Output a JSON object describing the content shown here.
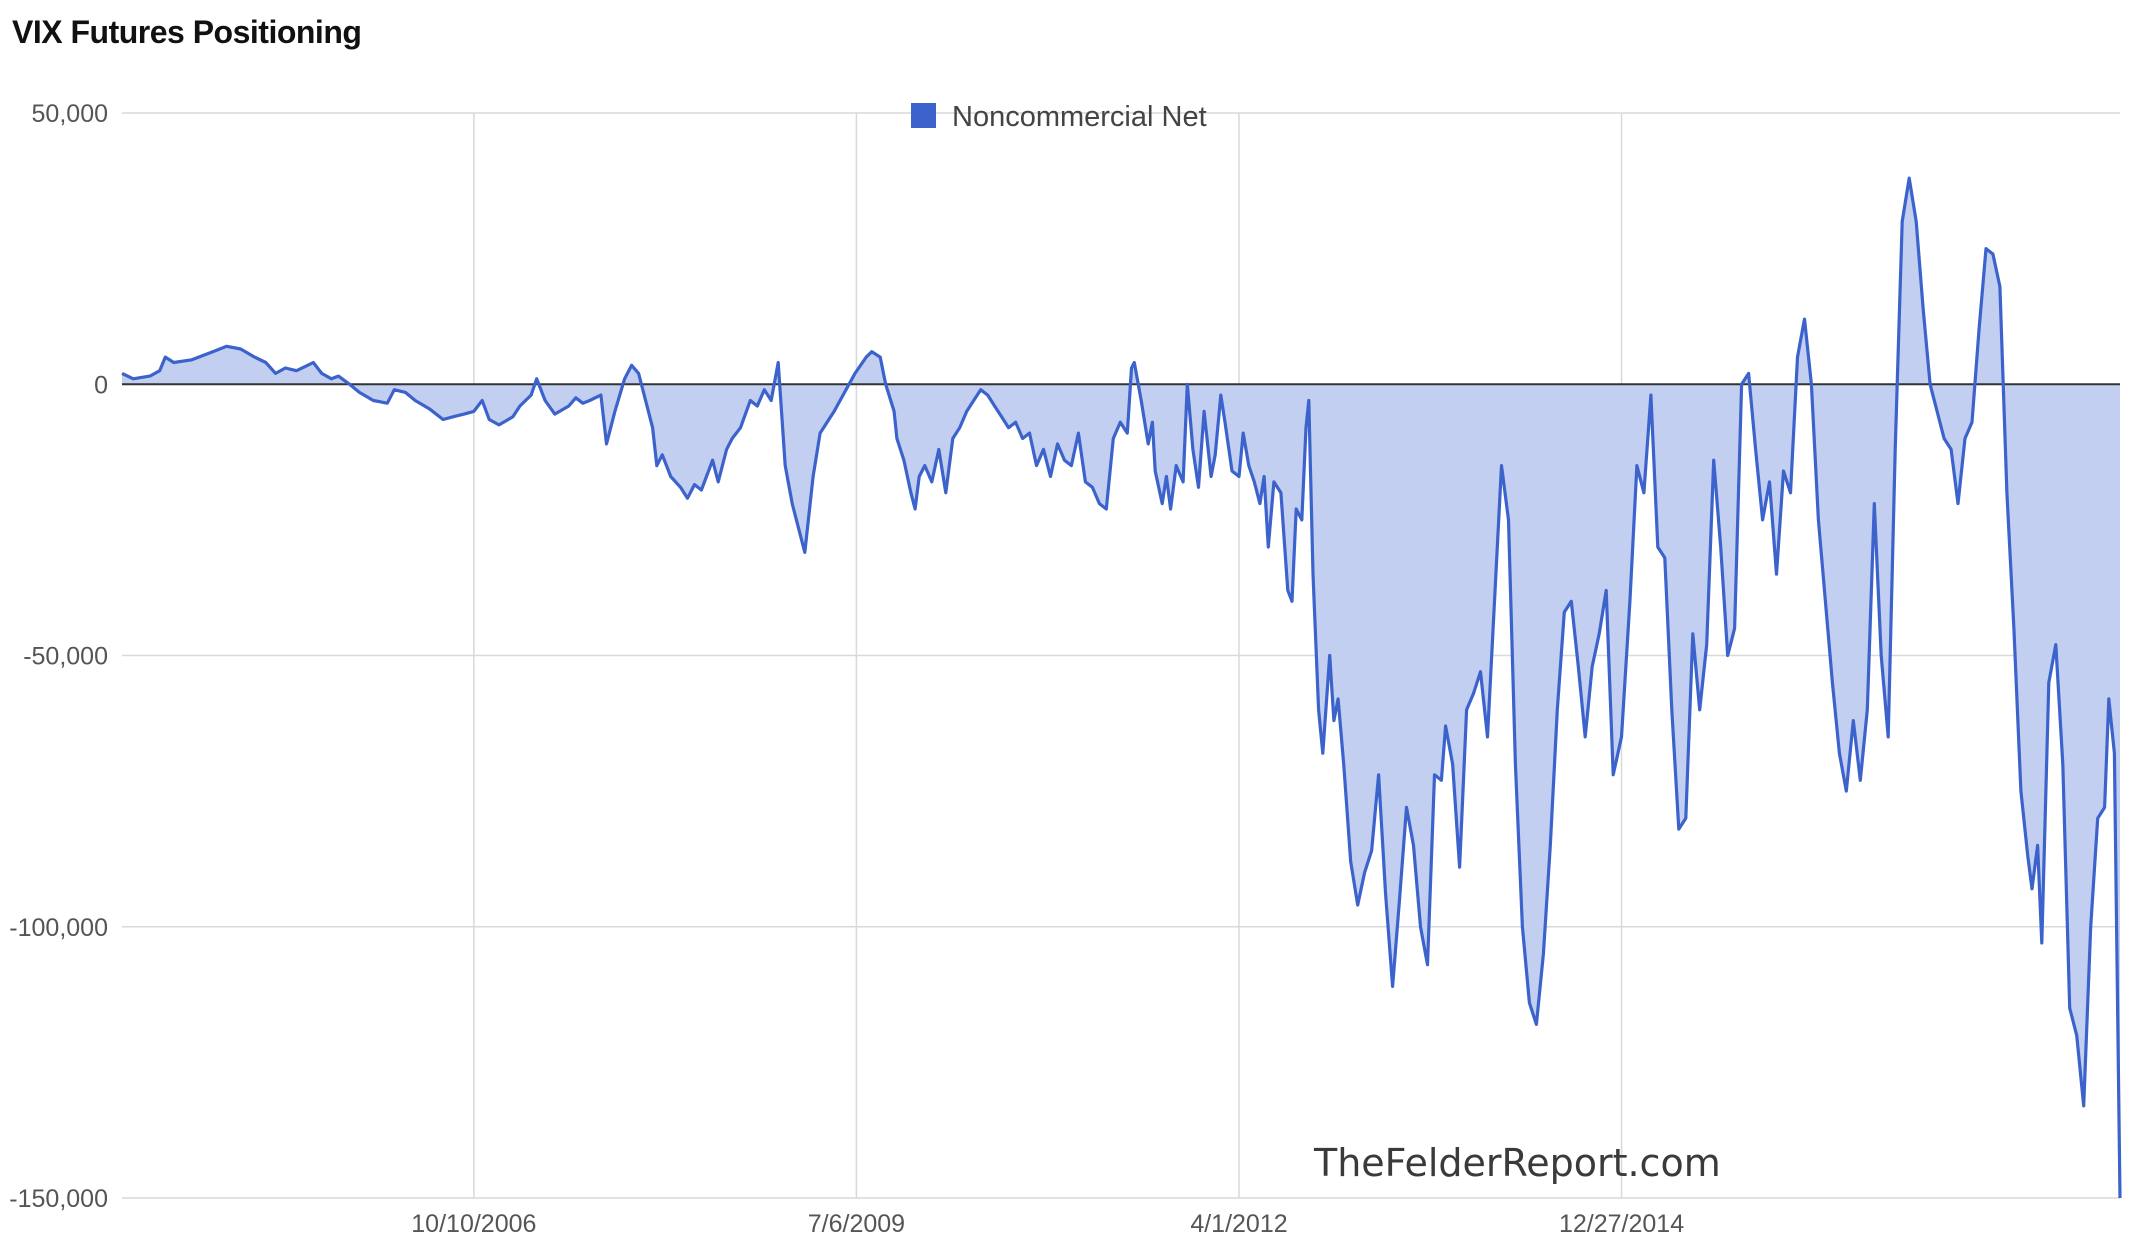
{
  "title": "VIX Futures Positioning",
  "watermark": "TheFelderReport.com",
  "colors": {
    "line": "#3c62cc",
    "fill": "#c3cff0",
    "grid": "#d9d9d9",
    "zero": "#333333"
  },
  "chart_data": {
    "type": "area",
    "title": "VIX Futures Positioning",
    "series_name": "Noncommercial Net",
    "legend_position": "top-center",
    "ylim": [
      -150000,
      50000
    ],
    "yticks": [
      {
        "value": 50000,
        "label": "50,000"
      },
      {
        "value": 0,
        "label": "0"
      },
      {
        "value": -50000,
        "label": "-50,000"
      },
      {
        "value": -100000,
        "label": "-100,000"
      },
      {
        "value": -150000,
        "label": "-150,000"
      }
    ],
    "xlim": [
      2004.25,
      2018.56
    ],
    "xticks": [
      {
        "value": 2006.77,
        "label": "10/10/2006"
      },
      {
        "value": 2009.51,
        "label": "7/6/2009"
      },
      {
        "value": 2012.25,
        "label": "4/1/2012"
      },
      {
        "value": 2014.99,
        "label": "12/27/2014"
      }
    ],
    "points": [
      [
        2004.25,
        2000
      ],
      [
        2004.33,
        1000
      ],
      [
        2004.45,
        1500
      ],
      [
        2004.52,
        2500
      ],
      [
        2004.56,
        5000
      ],
      [
        2004.62,
        4000
      ],
      [
        2004.75,
        4500
      ],
      [
        2004.9,
        6000
      ],
      [
        2005.0,
        7000
      ],
      [
        2005.1,
        6500
      ],
      [
        2005.2,
        5000
      ],
      [
        2005.28,
        4000
      ],
      [
        2005.35,
        2000
      ],
      [
        2005.42,
        3000
      ],
      [
        2005.5,
        2500
      ],
      [
        2005.58,
        3500
      ],
      [
        2005.62,
        4000
      ],
      [
        2005.68,
        2000
      ],
      [
        2005.75,
        1000
      ],
      [
        2005.8,
        1500
      ],
      [
        2005.88,
        0
      ],
      [
        2005.95,
        -1500
      ],
      [
        2006.05,
        -3000
      ],
      [
        2006.15,
        -3500
      ],
      [
        2006.2,
        -1000
      ],
      [
        2006.28,
        -1500
      ],
      [
        2006.35,
        -3000
      ],
      [
        2006.45,
        -4500
      ],
      [
        2006.55,
        -6500
      ],
      [
        2006.62,
        -6000
      ],
      [
        2006.7,
        -5500
      ],
      [
        2006.77,
        -5000
      ],
      [
        2006.83,
        -3000
      ],
      [
        2006.88,
        -6500
      ],
      [
        2006.95,
        -7500
      ],
      [
        2007.05,
        -6000
      ],
      [
        2007.1,
        -4000
      ],
      [
        2007.18,
        -2000
      ],
      [
        2007.22,
        1000
      ],
      [
        2007.28,
        -3000
      ],
      [
        2007.35,
        -5500
      ],
      [
        2007.45,
        -4000
      ],
      [
        2007.5,
        -2500
      ],
      [
        2007.55,
        -3500
      ],
      [
        2007.6,
        -3000
      ],
      [
        2007.68,
        -2000
      ],
      [
        2007.72,
        -11000
      ],
      [
        2007.78,
        -5000
      ],
      [
        2007.85,
        1000
      ],
      [
        2007.9,
        3500
      ],
      [
        2007.95,
        2000
      ],
      [
        2008.0,
        -3000
      ],
      [
        2008.05,
        -8000
      ],
      [
        2008.08,
        -15000
      ],
      [
        2008.12,
        -13000
      ],
      [
        2008.18,
        -17000
      ],
      [
        2008.25,
        -19000
      ],
      [
        2008.3,
        -21000
      ],
      [
        2008.35,
        -18500
      ],
      [
        2008.4,
        -19500
      ],
      [
        2008.48,
        -14000
      ],
      [
        2008.52,
        -18000
      ],
      [
        2008.58,
        -12000
      ],
      [
        2008.62,
        -10000
      ],
      [
        2008.68,
        -8000
      ],
      [
        2008.75,
        -3000
      ],
      [
        2008.8,
        -4000
      ],
      [
        2008.85,
        -1000
      ],
      [
        2008.9,
        -3000
      ],
      [
        2008.95,
        4000
      ],
      [
        2009.0,
        -15000
      ],
      [
        2009.05,
        -22000
      ],
      [
        2009.1,
        -27000
      ],
      [
        2009.14,
        -31000
      ],
      [
        2009.2,
        -17000
      ],
      [
        2009.25,
        -9000
      ],
      [
        2009.35,
        -5000
      ],
      [
        2009.5,
        2000
      ],
      [
        2009.58,
        5000
      ],
      [
        2009.62,
        6000
      ],
      [
        2009.68,
        5000
      ],
      [
        2009.72,
        0
      ],
      [
        2009.78,
        -5000
      ],
      [
        2009.8,
        -10000
      ],
      [
        2009.85,
        -14000
      ],
      [
        2009.9,
        -20000
      ],
      [
        2009.93,
        -23000
      ],
      [
        2009.96,
        -17000
      ],
      [
        2010.0,
        -15000
      ],
      [
        2010.05,
        -18000
      ],
      [
        2010.1,
        -12000
      ],
      [
        2010.15,
        -20000
      ],
      [
        2010.2,
        -10000
      ],
      [
        2010.25,
        -8000
      ],
      [
        2010.3,
        -5000
      ],
      [
        2010.35,
        -3000
      ],
      [
        2010.4,
        -1000
      ],
      [
        2010.45,
        -2000
      ],
      [
        2010.5,
        -4000
      ],
      [
        2010.55,
        -6000
      ],
      [
        2010.6,
        -8000
      ],
      [
        2010.65,
        -7000
      ],
      [
        2010.7,
        -10000
      ],
      [
        2010.75,
        -9000
      ],
      [
        2010.8,
        -15000
      ],
      [
        2010.85,
        -12000
      ],
      [
        2010.9,
        -17000
      ],
      [
        2010.95,
        -11000
      ],
      [
        2011.0,
        -14000
      ],
      [
        2011.05,
        -15000
      ],
      [
        2011.1,
        -9000
      ],
      [
        2011.15,
        -18000
      ],
      [
        2011.2,
        -19000
      ],
      [
        2011.25,
        -22000
      ],
      [
        2011.3,
        -23000
      ],
      [
        2011.35,
        -10000
      ],
      [
        2011.4,
        -7000
      ],
      [
        2011.45,
        -9000
      ],
      [
        2011.48,
        3000
      ],
      [
        2011.5,
        4000
      ],
      [
        2011.55,
        -3000
      ],
      [
        2011.6,
        -11000
      ],
      [
        2011.63,
        -7000
      ],
      [
        2011.65,
        -16000
      ],
      [
        2011.7,
        -22000
      ],
      [
        2011.73,
        -17000
      ],
      [
        2011.76,
        -23000
      ],
      [
        2011.8,
        -15000
      ],
      [
        2011.85,
        -18000
      ],
      [
        2011.88,
        0
      ],
      [
        2011.92,
        -12000
      ],
      [
        2011.96,
        -19000
      ],
      [
        2012.0,
        -5000
      ],
      [
        2012.05,
        -17000
      ],
      [
        2012.08,
        -13000
      ],
      [
        2012.12,
        -2000
      ],
      [
        2012.15,
        -7000
      ],
      [
        2012.2,
        -16000
      ],
      [
        2012.25,
        -17000
      ],
      [
        2012.28,
        -9000
      ],
      [
        2012.32,
        -15000
      ],
      [
        2012.36,
        -18000
      ],
      [
        2012.4,
        -22000
      ],
      [
        2012.43,
        -17000
      ],
      [
        2012.46,
        -30000
      ],
      [
        2012.5,
        -18000
      ],
      [
        2012.55,
        -20000
      ],
      [
        2012.6,
        -38000
      ],
      [
        2012.63,
        -40000
      ],
      [
        2012.66,
        -23000
      ],
      [
        2012.7,
        -25000
      ],
      [
        2012.73,
        -8000
      ],
      [
        2012.75,
        -3000
      ],
      [
        2012.78,
        -35000
      ],
      [
        2012.82,
        -60000
      ],
      [
        2012.85,
        -68000
      ],
      [
        2012.9,
        -50000
      ],
      [
        2012.93,
        -62000
      ],
      [
        2012.96,
        -58000
      ],
      [
        2013.0,
        -70000
      ],
      [
        2013.05,
        -88000
      ],
      [
        2013.1,
        -96000
      ],
      [
        2013.15,
        -90000
      ],
      [
        2013.2,
        -86000
      ],
      [
        2013.25,
        -72000
      ],
      [
        2013.3,
        -94000
      ],
      [
        2013.35,
        -111000
      ],
      [
        2013.4,
        -95000
      ],
      [
        2013.45,
        -78000
      ],
      [
        2013.5,
        -85000
      ],
      [
        2013.55,
        -100000
      ],
      [
        2013.6,
        -107000
      ],
      [
        2013.65,
        -72000
      ],
      [
        2013.7,
        -73000
      ],
      [
        2013.73,
        -63000
      ],
      [
        2013.78,
        -70000
      ],
      [
        2013.83,
        -89000
      ],
      [
        2013.88,
        -60000
      ],
      [
        2013.93,
        -57000
      ],
      [
        2013.98,
        -53000
      ],
      [
        2014.03,
        -65000
      ],
      [
        2014.08,
        -40000
      ],
      [
        2014.13,
        -15000
      ],
      [
        2014.18,
        -25000
      ],
      [
        2014.23,
        -70000
      ],
      [
        2014.28,
        -100000
      ],
      [
        2014.33,
        -114000
      ],
      [
        2014.38,
        -118000
      ],
      [
        2014.43,
        -105000
      ],
      [
        2014.48,
        -85000
      ],
      [
        2014.53,
        -60000
      ],
      [
        2014.58,
        -42000
      ],
      [
        2014.63,
        -40000
      ],
      [
        2014.68,
        -52000
      ],
      [
        2014.73,
        -65000
      ],
      [
        2014.78,
        -52000
      ],
      [
        2014.83,
        -46000
      ],
      [
        2014.88,
        -38000
      ],
      [
        2014.93,
        -72000
      ],
      [
        2014.99,
        -65000
      ],
      [
        2015.05,
        -40000
      ],
      [
        2015.1,
        -15000
      ],
      [
        2015.15,
        -20000
      ],
      [
        2015.2,
        -2000
      ],
      [
        2015.25,
        -30000
      ],
      [
        2015.3,
        -32000
      ],
      [
        2015.35,
        -60000
      ],
      [
        2015.4,
        -82000
      ],
      [
        2015.45,
        -80000
      ],
      [
        2015.5,
        -46000
      ],
      [
        2015.55,
        -60000
      ],
      [
        2015.6,
        -48000
      ],
      [
        2015.65,
        -14000
      ],
      [
        2015.7,
        -30000
      ],
      [
        2015.75,
        -50000
      ],
      [
        2015.8,
        -45000
      ],
      [
        2015.85,
        0
      ],
      [
        2015.9,
        2000
      ],
      [
        2015.95,
        -12000
      ],
      [
        2016.0,
        -25000
      ],
      [
        2016.05,
        -18000
      ],
      [
        2016.1,
        -35000
      ],
      [
        2016.15,
        -16000
      ],
      [
        2016.2,
        -20000
      ],
      [
        2016.25,
        5000
      ],
      [
        2016.3,
        12000
      ],
      [
        2016.35,
        0
      ],
      [
        2016.4,
        -25000
      ],
      [
        2016.45,
        -40000
      ],
      [
        2016.5,
        -55000
      ],
      [
        2016.55,
        -68000
      ],
      [
        2016.6,
        -75000
      ],
      [
        2016.65,
        -62000
      ],
      [
        2016.7,
        -73000
      ],
      [
        2016.75,
        -60000
      ],
      [
        2016.8,
        -22000
      ],
      [
        2016.85,
        -50000
      ],
      [
        2016.9,
        -65000
      ],
      [
        2016.95,
        -12000
      ],
      [
        2017.0,
        30000
      ],
      [
        2017.05,
        38000
      ],
      [
        2017.1,
        30000
      ],
      [
        2017.15,
        14000
      ],
      [
        2017.2,
        0
      ],
      [
        2017.25,
        -5000
      ],
      [
        2017.3,
        -10000
      ],
      [
        2017.35,
        -12000
      ],
      [
        2017.4,
        -22000
      ],
      [
        2017.45,
        -10000
      ],
      [
        2017.5,
        -7000
      ],
      [
        2017.55,
        10000
      ],
      [
        2017.6,
        25000
      ],
      [
        2017.65,
        24000
      ],
      [
        2017.7,
        18000
      ],
      [
        2017.75,
        -20000
      ],
      [
        2017.8,
        -45000
      ],
      [
        2017.85,
        -75000
      ],
      [
        2017.9,
        -87000
      ],
      [
        2017.93,
        -93000
      ],
      [
        2017.97,
        -85000
      ],
      [
        2018.0,
        -103000
      ],
      [
        2018.05,
        -55000
      ],
      [
        2018.1,
        -48000
      ],
      [
        2018.15,
        -70000
      ],
      [
        2018.2,
        -115000
      ],
      [
        2018.25,
        -120000
      ],
      [
        2018.3,
        -133000
      ],
      [
        2018.35,
        -100000
      ],
      [
        2018.4,
        -80000
      ],
      [
        2018.45,
        -78000
      ],
      [
        2018.48,
        -58000
      ],
      [
        2018.52,
        -68000
      ],
      [
        2018.56,
        -150000
      ]
    ]
  }
}
